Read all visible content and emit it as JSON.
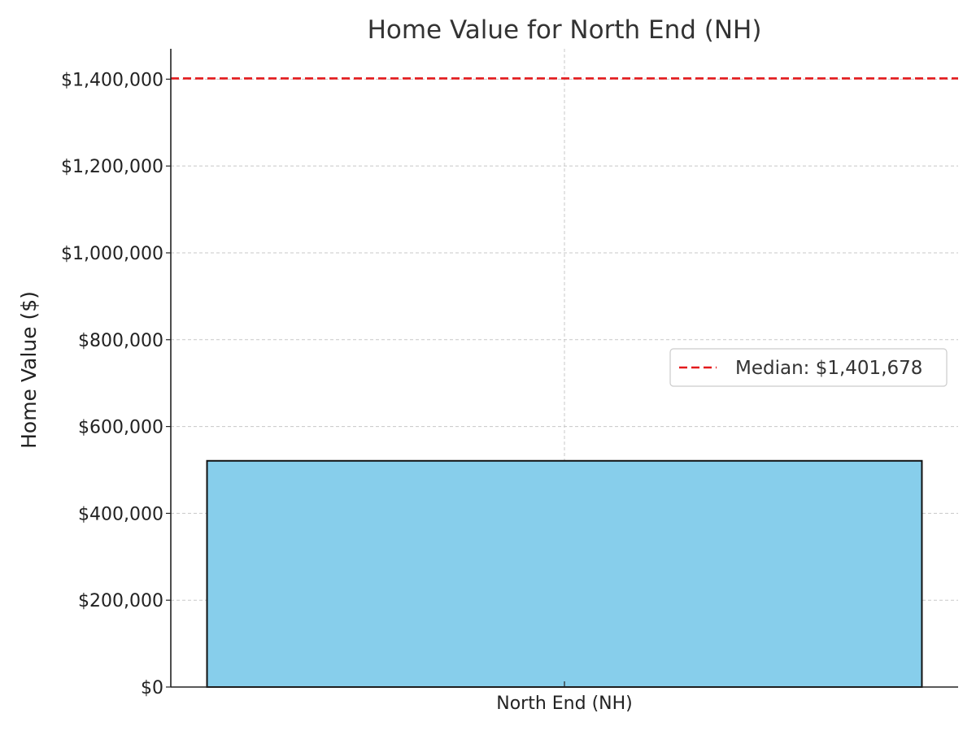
{
  "chart_data": {
    "type": "bar",
    "title": "Home Value for North End (NH)",
    "xlabel": "",
    "ylabel": "Home Value ($)",
    "categories": [
      "North End (NH)"
    ],
    "values": [
      521000
    ],
    "ylim": [
      0,
      1470000
    ],
    "yticks": [
      0,
      200000,
      400000,
      600000,
      800000,
      1000000,
      1200000,
      1400000
    ],
    "ytick_labels": [
      "$0",
      "$200,000",
      "$400,000",
      "$600,000",
      "$800,000",
      "$1,000,000",
      "$1,200,000",
      "$1,400,000"
    ],
    "reference_line": {
      "label": "Median: $1,401,678",
      "value": 1401678,
      "style": "dashed"
    },
    "grid": true,
    "legend_position": "right"
  },
  "colors": {
    "bar_fill": "#87CEEB",
    "bar_edge": "#111111",
    "median_line": "#e31a1c"
  }
}
